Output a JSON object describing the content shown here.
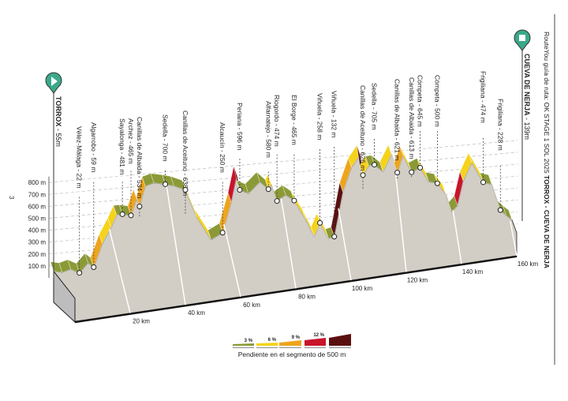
{
  "title": {
    "prefix": "RouteYou guía de ruta: OK STAGE 1 SOL 2025 ",
    "route": "TORROX - CUEVA DE NERJA"
  },
  "page_number": "3",
  "start": {
    "name": "TORROX",
    "elevation": "55m"
  },
  "end": {
    "name": "CUEVA DE NERJA",
    "elevation": "139m"
  },
  "colors": {
    "marker": "#3aa98a",
    "ground": "#d2cdc5",
    "slope_3": "#8b9a36",
    "slope_6": "#f5d31c",
    "slope_9": "#eea41c",
    "slope_12": "#c8142a",
    "slope_max": "#5b1010"
  },
  "legend": {
    "title": "Pendiente en el segmento de 500 m",
    "items": [
      "3 %",
      "6 %",
      "9 %",
      "12 %",
      ""
    ]
  },
  "chart_data": {
    "type": "area",
    "title": "",
    "xlabel": "",
    "ylabel": "",
    "x_unit": "km",
    "y_unit": "m",
    "xlim": [
      0,
      160
    ],
    "ylim": [
      0,
      800
    ],
    "x_ticks": [
      "20 km",
      "40 km",
      "60 km",
      "80 km",
      "100 km",
      "120 km",
      "140 km",
      "160 km"
    ],
    "y_ticks": [
      "100 m",
      "200 m",
      "300 m",
      "400 m",
      "500 m",
      "600 m",
      "700 m",
      "800 m"
    ],
    "grid": true,
    "profile": {
      "km": [
        0,
        3,
        6,
        9,
        12,
        14,
        17,
        20,
        22,
        24,
        27,
        29,
        30,
        32,
        35,
        39,
        42,
        46,
        50,
        55,
        59,
        62,
        64,
        65,
        68,
        72,
        75,
        76,
        78,
        81,
        84,
        88,
        91,
        93,
        96,
        98,
        101,
        104,
        107,
        108,
        110,
        112,
        115,
        118,
        120,
        122,
        125,
        128,
        131,
        134,
        137,
        139,
        141,
        143,
        146,
        150,
        153,
        156,
        158,
        160
      ],
      "elevation": [
        55,
        40,
        60,
        22,
        100,
        59,
        250,
        380,
        480,
        481,
        465,
        600,
        534,
        700,
        720,
        700,
        680,
        638,
        400,
        200,
        250,
        500,
        720,
        596,
        560,
        650,
        580,
        620,
        474,
        520,
        465,
        300,
        150,
        258,
        120,
        132,
        500,
        700,
        800,
        626,
        700,
        705,
        640,
        780,
        621,
        760,
        613,
        645,
        520,
        500,
        400,
        250,
        300,
        500,
        650,
        474,
        450,
        228,
        180,
        139
      ]
    },
    "waypoints": [
      {
        "name": "Vélez-Málaga",
        "elevation": "22 m",
        "km": 9
      },
      {
        "name": "Algarrobo",
        "elevation": "59 m",
        "km": 14
      },
      {
        "name": "Sayalonga",
        "elevation": "481 m",
        "km": 24
      },
      {
        "name": "Archez",
        "elevation": "465 m",
        "km": 27
      },
      {
        "name": "Canillas de Albaida",
        "elevation": "534 m",
        "km": 30
      },
      {
        "name": "Sedella",
        "elevation": "700 m",
        "km": 39
      },
      {
        "name": "Canillas de Aceituno",
        "elevation": "638 m",
        "km": 46
      },
      {
        "name": "Alcaucín",
        "elevation": "250 m",
        "km": 59
      },
      {
        "name": "Periana",
        "elevation": "596 m",
        "km": 65
      },
      {
        "name": "Alfarnatejo",
        "elevation": "580 m",
        "km": 75
      },
      {
        "name": "Riogordo",
        "elevation": "474 m",
        "km": 78
      },
      {
        "name": "El Borge",
        "elevation": "465 m",
        "km": 84
      },
      {
        "name": "Viñuela",
        "elevation": "258 m",
        "km": 93
      },
      {
        "name": "Viñuela",
        "elevation": "132 m",
        "km": 98
      },
      {
        "name": "Canillas de Aceituno",
        "elevation": "626 m",
        "km": 108
      },
      {
        "name": "Sedella",
        "elevation": "705 m",
        "km": 112
      },
      {
        "name": "Canillas de Albaida",
        "elevation": "621 m",
        "km": 120
      },
      {
        "name": "Canillas de Albaida",
        "elevation": "613 m",
        "km": 125
      },
      {
        "name": "Cómpeta",
        "elevation": "645 m",
        "km": 128
      },
      {
        "name": "Cómpeta",
        "elevation": "500 m",
        "km": 134
      },
      {
        "name": "Frigiliana",
        "elevation": "474 m",
        "km": 150
      },
      {
        "name": "Frigiliana",
        "elevation": "228 m",
        "km": 156
      }
    ]
  }
}
